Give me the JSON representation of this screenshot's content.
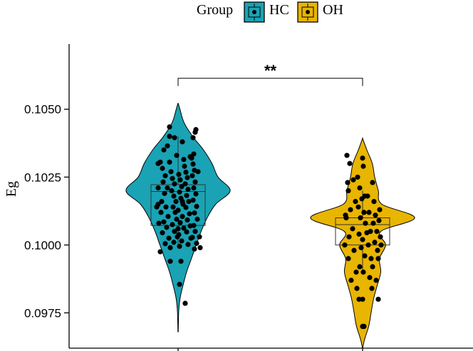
{
  "chart_data": {
    "type": "violin",
    "ylabel": "Eg",
    "xlabel": "",
    "ylim": [
      0.0962,
      0.1074
    ],
    "yticks": [
      0.0975,
      0.1,
      0.1025,
      0.105
    ],
    "ytick_labels": [
      "0.0975",
      "0.1000",
      "0.1025",
      "0.1050"
    ],
    "legend": {
      "title": "Group",
      "position": "top",
      "entries": [
        {
          "name": "HC",
          "color": "#1aa3b4"
        },
        {
          "name": "OH",
          "color": "#e8b500"
        }
      ]
    },
    "significance": {
      "label": "**",
      "between": [
        "HC",
        "OH"
      ],
      "y": 0.10614
    },
    "groups": [
      {
        "name": "HC",
        "color": "#1aa3b4",
        "box": {
          "q1": 0.10072,
          "median": 0.10197,
          "q3": 0.10222,
          "whisker_low": 0.1,
          "whisker_high": 0.104
        },
        "violin_range": [
          0.0968,
          0.1052
        ],
        "violin_profile": [
          [
            0.0968,
            0.002
          ],
          [
            0.0975,
            0.01
          ],
          [
            0.098,
            0.03
          ],
          [
            0.0985,
            0.08
          ],
          [
            0.099,
            0.14
          ],
          [
            0.0995,
            0.22
          ],
          [
            0.1,
            0.3
          ],
          [
            0.1005,
            0.38
          ],
          [
            0.101,
            0.48
          ],
          [
            0.1015,
            0.62
          ],
          [
            0.102,
            0.86
          ],
          [
            0.1025,
            0.66
          ],
          [
            0.103,
            0.56
          ],
          [
            0.1035,
            0.42
          ],
          [
            0.104,
            0.24
          ],
          [
            0.1045,
            0.1
          ],
          [
            0.105,
            0.03
          ],
          [
            0.1052,
            0.005
          ]
        ],
        "points": [
          [
            -0.25,
            0.10305
          ],
          [
            -0.22,
            0.10282
          ],
          [
            -0.18,
            0.10255
          ],
          [
            -0.21,
            0.10232
          ],
          [
            -0.15,
            0.1021
          ],
          [
            -0.19,
            0.1019
          ],
          [
            -0.23,
            0.1016
          ],
          [
            -0.17,
            0.1014
          ],
          [
            -0.24,
            0.1012
          ],
          [
            -0.14,
            0.10105
          ],
          [
            -0.2,
            0.10085
          ],
          [
            -0.16,
            0.10065
          ],
          [
            -0.22,
            0.10045
          ],
          [
            -0.13,
            0.10025
          ],
          [
            -0.18,
            0.10005
          ],
          [
            -0.25,
            0.09975
          ],
          [
            -0.11,
            0.0999
          ],
          [
            -0.1,
            0.1027
          ],
          [
            -0.08,
            0.10245
          ],
          [
            -0.05,
            0.10225
          ],
          [
            -0.09,
            0.102
          ],
          [
            -0.06,
            0.1018
          ],
          [
            -0.03,
            0.1016
          ],
          [
            -0.07,
            0.1014
          ],
          [
            -0.04,
            0.1012
          ],
          [
            -0.02,
            0.10095
          ],
          [
            -0.08,
            0.10075
          ],
          [
            -0.05,
            0.1005
          ],
          [
            -0.01,
            0.1003
          ],
          [
            -0.06,
            0.1001
          ],
          [
            0.01,
            0.1026
          ],
          [
            0.03,
            0.1024
          ],
          [
            0.05,
            0.10215
          ],
          [
            0.02,
            0.10195
          ],
          [
            0.04,
            0.10172
          ],
          [
            0.07,
            0.1015
          ],
          [
            0.0,
            0.10128
          ],
          [
            0.06,
            0.10105
          ],
          [
            0.03,
            0.10082
          ],
          [
            0.08,
            0.10062
          ],
          [
            0.01,
            0.10038
          ],
          [
            0.05,
            0.10015
          ],
          [
            0.02,
            0.09995
          ],
          [
            0.09,
            0.1029
          ],
          [
            0.11,
            0.10268
          ],
          [
            0.13,
            0.10248
          ],
          [
            0.1,
            0.10225
          ],
          [
            0.14,
            0.10205
          ],
          [
            0.12,
            0.10182
          ],
          [
            0.15,
            0.1016
          ],
          [
            0.11,
            0.10138
          ],
          [
            0.16,
            0.10115
          ],
          [
            0.13,
            0.10092
          ],
          [
            0.17,
            0.1007
          ],
          [
            0.12,
            0.10048
          ],
          [
            0.18,
            0.10025
          ],
          [
            0.14,
            0.10002
          ],
          [
            0.19,
            0.1032
          ],
          [
            0.21,
            0.10298
          ],
          [
            0.23,
            0.10275
          ],
          [
            0.2,
            0.10255
          ],
          [
            0.24,
            0.10232
          ],
          [
            0.22,
            0.1021
          ],
          [
            0.25,
            0.10188
          ],
          [
            0.21,
            0.10165
          ],
          [
            0.26,
            0.10142
          ],
          [
            0.23,
            0.10118
          ],
          [
            0.27,
            0.10095
          ],
          [
            0.22,
            0.10072
          ],
          [
            0.24,
            0.1005
          ],
          [
            0.2,
            0.10028
          ],
          [
            0.26,
            0.10006
          ],
          [
            0.23,
            0.09985
          ],
          [
            -0.12,
            0.10305
          ],
          [
            -0.02,
            0.1033
          ],
          [
            0.08,
            0.10315
          ],
          [
            0.17,
            0.10325
          ],
          [
            0.22,
            0.10335
          ],
          [
            -0.2,
            0.1035
          ],
          [
            -0.15,
            0.10365
          ],
          [
            -0.05,
            0.10395
          ],
          [
            0.06,
            0.1038
          ],
          [
            0.21,
            0.10395
          ],
          [
            -0.12,
            0.104
          ],
          [
            0.24,
            0.10415
          ],
          [
            0.25,
            0.10425
          ],
          [
            -0.12,
            0.10435
          ],
          [
            -0.11,
            0.0994
          ],
          [
            0.04,
            0.0994
          ],
          [
            0.02,
            0.09855
          ],
          [
            0.1,
            0.09785
          ],
          [
            -0.28,
            0.103
          ],
          [
            -0.28,
            0.1021
          ],
          [
            -0.27,
            0.1008
          ],
          [
            -0.3,
            0.1014
          ],
          [
            -0.28,
            0.1015
          ],
          [
            0.28,
            0.1027
          ],
          [
            0.3,
            0.1003
          ],
          [
            0.31,
            0.0999
          ],
          [
            0.06,
            0.1016
          ],
          [
            0.0,
            0.1006
          ]
        ]
      },
      {
        "name": "OH",
        "color": "#e8b500",
        "box": {
          "q1": 0.1,
          "median": 0.10075,
          "q3": 0.101,
          "whisker_low": 0.099,
          "whisker_high": 0.102
        },
        "violin_range": [
          0.0962,
          0.1039
        ],
        "violin_profile": [
          [
            0.0962,
            0.002
          ],
          [
            0.0965,
            0.03
          ],
          [
            0.097,
            0.1
          ],
          [
            0.0975,
            0.14
          ],
          [
            0.098,
            0.18
          ],
          [
            0.0985,
            0.24
          ],
          [
            0.099,
            0.3
          ],
          [
            0.0995,
            0.28
          ],
          [
            0.1,
            0.38
          ],
          [
            0.1005,
            0.3
          ],
          [
            0.101,
            0.86
          ],
          [
            0.1015,
            0.32
          ],
          [
            0.102,
            0.26
          ],
          [
            0.1025,
            0.2
          ],
          [
            0.103,
            0.16
          ],
          [
            0.1035,
            0.07
          ],
          [
            0.1039,
            0.003
          ]
        ],
        "points": [
          [
            -0.22,
            0.1033
          ],
          [
            -0.18,
            0.103
          ],
          [
            -0.13,
            0.1024
          ],
          [
            -0.2,
            0.102
          ],
          [
            -0.1,
            0.1016
          ],
          [
            -0.17,
            0.1013
          ],
          [
            -0.23,
            0.101
          ],
          [
            -0.14,
            0.1006
          ],
          [
            -0.19,
            0.1003
          ],
          [
            -0.25,
            0.1
          ],
          [
            -0.12,
            0.0998
          ],
          [
            -0.2,
            0.0995
          ],
          [
            -0.09,
            0.099
          ],
          [
            -0.16,
            0.0987
          ],
          [
            -0.07,
            0.1025
          ],
          [
            -0.04,
            0.1021
          ],
          [
            -0.06,
            0.1014
          ],
          [
            -0.03,
            0.101
          ],
          [
            -0.05,
            0.1004
          ],
          [
            -0.02,
            0.0999
          ],
          [
            -0.04,
            0.0992
          ],
          [
            -0.08,
            0.0984
          ],
          [
            -0.05,
            0.098
          ],
          [
            0.0,
            0.1032
          ],
          [
            0.01,
            0.1029
          ],
          [
            0.03,
            0.1018
          ],
          [
            0.02,
            0.1012
          ],
          [
            0.04,
            0.1008
          ],
          [
            0.0,
            0.1002
          ],
          [
            0.03,
            0.0996
          ],
          [
            0.01,
            0.099
          ],
          [
            0.0,
            0.098
          ],
          [
            0.0,
            0.097
          ],
          [
            0.02,
            0.097
          ],
          [
            0.07,
            0.1018
          ],
          [
            0.09,
            0.1012
          ],
          [
            0.11,
            0.1005
          ],
          [
            0.08,
            0.1
          ],
          [
            0.12,
            0.0995
          ],
          [
            0.1,
            0.0988
          ],
          [
            0.13,
            0.0984
          ],
          [
            0.14,
            0.1023
          ],
          [
            0.16,
            0.1016
          ],
          [
            0.18,
            0.1011
          ],
          [
            0.2,
            0.1005
          ],
          [
            0.15,
            0.1008
          ],
          [
            0.17,
            0.1001
          ],
          [
            0.21,
            0.0998
          ],
          [
            0.14,
            0.0992
          ],
          [
            0.19,
            0.0987
          ],
          [
            0.22,
            0.098
          ],
          [
            0.24,
            0.1013
          ],
          [
            0.23,
            0.1009
          ],
          [
            0.25,
            0.1003
          ],
          [
            0.26,
            0.1
          ],
          [
            0.22,
            0.0995
          ],
          [
            -0.24,
            0.1011
          ],
          [
            -0.21,
            0.1023
          ],
          [
            0.06,
            0.10045
          ],
          [
            -0.01,
            0.1017
          ]
        ]
      }
    ]
  }
}
